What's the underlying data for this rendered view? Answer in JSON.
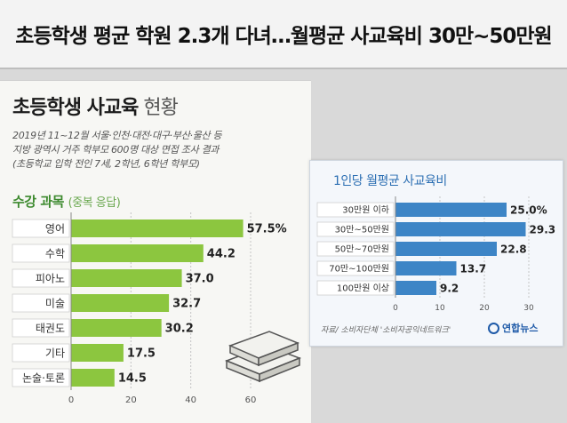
{
  "headline": "초등학생 평균 학원 2.3개 다녀…월평균 사교육비 30만~50만원",
  "left_panel": {
    "title_bold": "초등학생 사교육",
    "title_light": "현황",
    "subtext": [
      "2019년 11~12월 서울·인천·대전·대구·부산·울산 등",
      "지방 광역시 거주 학부모 600명 대상 면접 조사 결과",
      "(초등학교 입학 전인 7세, 2학년, 6학년 학부모)"
    ],
    "section_label": "수강 과목",
    "section_note": "(중복 응답)"
  },
  "right_panel": {
    "title": "1인당 월평균 사교육비",
    "source": "자료/ 소비자단체 '소비자공익네트워크'",
    "logo": "연합뉴스"
  },
  "colors": {
    "bar_green": "#8cc63f",
    "bar_blue": "#3d85c6",
    "accent_green": "#3d8a2e",
    "accent_blue": "#2c6fb3"
  },
  "chart_data": [
    {
      "type": "bar",
      "orientation": "horizontal",
      "title": "수강 과목",
      "categories": [
        "영어",
        "수학",
        "피아노",
        "미술",
        "태권도",
        "기타",
        "논술·토론"
      ],
      "values": [
        57.5,
        44.2,
        37.0,
        32.7,
        30.2,
        17.5,
        14.5
      ],
      "value_labels": [
        "57.5%",
        "44.2",
        "37.0",
        "32.7",
        "30.2",
        "17.5",
        "14.5"
      ],
      "xlim": [
        0,
        60
      ],
      "xticks": [
        "0",
        "20",
        "40",
        "60"
      ],
      "grid": true
    },
    {
      "type": "bar",
      "orientation": "horizontal",
      "title": "1인당 월평균 사교육비",
      "categories": [
        "30만원 이하",
        "30만~50만원",
        "50만~70만원",
        "70만~100만원",
        "100만원 이상"
      ],
      "values": [
        25.0,
        29.3,
        22.8,
        13.7,
        9.2
      ],
      "value_labels": [
        "25.0%",
        "29.3",
        "22.8",
        "13.7",
        "9.2"
      ],
      "xlim": [
        0,
        30
      ],
      "xticks": [
        "0",
        "10",
        "20",
        "30"
      ],
      "grid": true
    }
  ]
}
